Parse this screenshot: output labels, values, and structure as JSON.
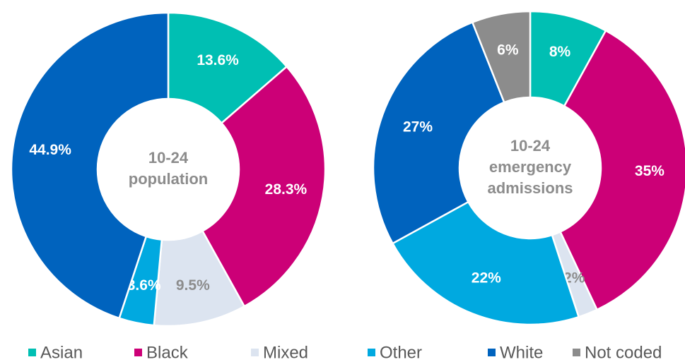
{
  "chart_data": [
    {
      "type": "pie",
      "center_label": [
        "10-24",
        "population"
      ],
      "categories": [
        "Asian",
        "Black",
        "Mixed",
        "Other",
        "White"
      ],
      "values": [
        13.6,
        28.3,
        9.5,
        3.6,
        44.9
      ],
      "value_labels": [
        "13.6%",
        "28.3%",
        "9.5%",
        "3.6%",
        "44.9%"
      ],
      "colors": [
        "#00bfb3",
        "#cc0077",
        "#dce4f0",
        "#00a9e0",
        "#0063be"
      ]
    },
    {
      "type": "pie",
      "center_label": [
        "10-24",
        "emergency",
        "admissions"
      ],
      "categories": [
        "Asian",
        "Black",
        "Mixed",
        "Other",
        "White",
        "Not coded"
      ],
      "values": [
        8,
        35,
        2,
        22,
        27,
        6
      ],
      "value_labels": [
        "8%",
        "35%",
        "2%",
        "22%",
        "27%",
        "6%"
      ],
      "colors": [
        "#00bfb3",
        "#cc0077",
        "#dce4f0",
        "#00a9e0",
        "#0063be",
        "#8c8c8c"
      ],
      "legend": true
    }
  ]
}
